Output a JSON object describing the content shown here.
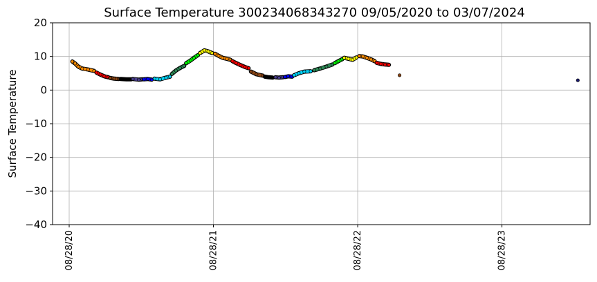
{
  "chart_data": {
    "type": "scatter",
    "title": "Surface Temperature 300234068343270  09/05/2020 to 03/07/2024",
    "ylabel": "Surface Temperature",
    "xlabel": "",
    "ylim": [
      -40,
      20
    ],
    "xlim": [
      "2020-07-17",
      "2024-04-07"
    ],
    "grid": true,
    "yticks": [
      -40,
      -30,
      -20,
      -10,
      0,
      10,
      20
    ],
    "xticks": [
      {
        "date": "2020-08-28",
        "label": "08/28/20"
      },
      {
        "date": "2021-08-28",
        "label": "08/28/21"
      },
      {
        "date": "2022-08-28",
        "label": "08/28/22"
      },
      {
        "date": "2023-08-28",
        "label": "08/28/23"
      }
    ],
    "series": [
      {
        "color": "#ff8c00",
        "points": [
          [
            "2020-09-05",
            8.5
          ],
          [
            "2020-09-12",
            7.9
          ],
          [
            "2020-09-20",
            7.0
          ],
          [
            "2020-09-30",
            6.4
          ],
          [
            "2020-10-15",
            6.1
          ],
          [
            "2020-10-30",
            5.7
          ]
        ]
      },
      {
        "color": "#ff0000",
        "points": [
          [
            "2020-11-05",
            5.2
          ],
          [
            "2020-11-15",
            4.6
          ],
          [
            "2020-11-25",
            4.1
          ],
          [
            "2020-12-05",
            3.8
          ]
        ]
      },
      {
        "color": "#8b4513",
        "points": [
          [
            "2020-12-10",
            3.6
          ],
          [
            "2020-12-20",
            3.4
          ],
          [
            "2020-12-31",
            3.3
          ]
        ]
      },
      {
        "color": "#000000",
        "points": [
          [
            "2021-01-05",
            3.3
          ],
          [
            "2021-01-20",
            3.2
          ],
          [
            "2021-02-01",
            3.2
          ]
        ]
      },
      {
        "color": "#483d8b",
        "points": [
          [
            "2021-02-05",
            3.3
          ],
          [
            "2021-02-20",
            3.1
          ],
          [
            "2021-03-01",
            3.2
          ]
        ]
      },
      {
        "color": "#0000ff",
        "points": [
          [
            "2021-03-05",
            3.2
          ],
          [
            "2021-03-15",
            3.3
          ],
          [
            "2021-03-25",
            3.1
          ]
        ]
      },
      {
        "color": "#00d8ff",
        "points": [
          [
            "2021-04-01",
            3.4
          ],
          [
            "2021-04-15",
            3.2
          ],
          [
            "2021-04-30",
            3.7
          ],
          [
            "2021-05-10",
            4.0
          ]
        ]
      },
      {
        "color": "#2e8b57",
        "points": [
          [
            "2021-05-15",
            4.8
          ],
          [
            "2021-05-25",
            5.8
          ],
          [
            "2021-06-05",
            6.6
          ],
          [
            "2021-06-15",
            7.2
          ]
        ]
      },
      {
        "color": "#00ff00",
        "points": [
          [
            "2021-06-20",
            8.0
          ],
          [
            "2021-07-01",
            8.8
          ],
          [
            "2021-07-10",
            9.6
          ],
          [
            "2021-07-20",
            10.4
          ]
        ]
      },
      {
        "color": "#ffff00",
        "points": [
          [
            "2021-07-25",
            11.0
          ],
          [
            "2021-08-05",
            11.8
          ],
          [
            "2021-08-15",
            11.5
          ],
          [
            "2021-08-25",
            11.0
          ]
        ]
      },
      {
        "color": "#ff8c00",
        "points": [
          [
            "2021-09-01",
            10.8
          ],
          [
            "2021-09-10",
            10.2
          ],
          [
            "2021-09-20",
            9.6
          ],
          [
            "2021-10-01",
            9.3
          ],
          [
            "2021-10-10",
            9.0
          ]
        ]
      },
      {
        "color": "#ff0000",
        "points": [
          [
            "2021-10-15",
            8.6
          ],
          [
            "2021-10-25",
            8.0
          ],
          [
            "2021-11-05",
            7.4
          ],
          [
            "2021-11-15",
            6.9
          ],
          [
            "2021-11-25",
            6.5
          ]
        ]
      },
      {
        "color": "#8b4513",
        "points": [
          [
            "2021-12-01",
            5.5
          ],
          [
            "2021-12-15",
            4.7
          ],
          [
            "2021-12-31",
            4.3
          ]
        ]
      },
      {
        "color": "#000000",
        "points": [
          [
            "2022-01-05",
            4.0
          ],
          [
            "2022-01-15",
            3.8
          ],
          [
            "2022-01-25",
            3.7
          ]
        ]
      },
      {
        "color": "#483d8b",
        "points": [
          [
            "2022-02-01",
            3.8
          ],
          [
            "2022-02-10",
            3.7
          ],
          [
            "2022-02-20",
            3.8
          ]
        ]
      },
      {
        "color": "#0000ff",
        "points": [
          [
            "2022-02-25",
            3.9
          ],
          [
            "2022-03-05",
            4.1
          ],
          [
            "2022-03-15",
            4.0
          ]
        ]
      },
      {
        "color": "#00d8ff",
        "points": [
          [
            "2022-03-20",
            4.4
          ],
          [
            "2022-04-01",
            5.0
          ],
          [
            "2022-04-15",
            5.5
          ],
          [
            "2022-05-01",
            5.6
          ]
        ]
      },
      {
        "color": "#2e8b57",
        "points": [
          [
            "2022-05-10",
            5.9
          ],
          [
            "2022-05-25",
            6.4
          ],
          [
            "2022-06-10",
            7.0
          ],
          [
            "2022-06-25",
            7.6
          ]
        ]
      },
      {
        "color": "#00ff00",
        "points": [
          [
            "2022-07-01",
            8.0
          ],
          [
            "2022-07-10",
            8.6
          ],
          [
            "2022-07-20",
            9.2
          ]
        ]
      },
      {
        "color": "#ffff00",
        "points": [
          [
            "2022-07-25",
            9.6
          ],
          [
            "2022-08-05",
            9.3
          ],
          [
            "2022-08-15",
            9.0
          ],
          [
            "2022-08-25",
            9.7
          ]
        ]
      },
      {
        "color": "#ff8c00",
        "points": [
          [
            "2022-09-01",
            10.1
          ],
          [
            "2022-09-10",
            10.0
          ],
          [
            "2022-09-20",
            9.6
          ],
          [
            "2022-10-01",
            9.1
          ],
          [
            "2022-10-10",
            8.6
          ]
        ]
      },
      {
        "color": "#ff0000",
        "points": [
          [
            "2022-10-15",
            8.1
          ],
          [
            "2022-10-25",
            7.8
          ],
          [
            "2022-11-05",
            7.6
          ],
          [
            "2022-11-15",
            7.5
          ]
        ]
      },
      {
        "color": "#8b4513",
        "points": [
          [
            "2022-12-12",
            4.4
          ]
        ]
      },
      {
        "color": "#191970",
        "points": [
          [
            "2024-03-07",
            2.9
          ]
        ]
      }
    ]
  }
}
